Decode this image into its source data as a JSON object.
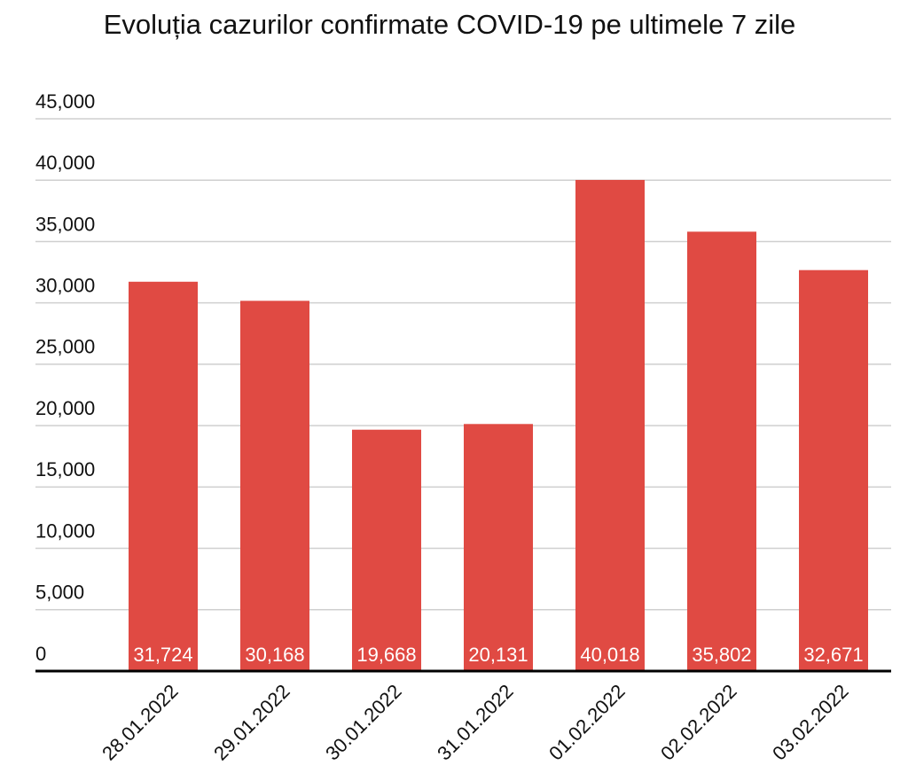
{
  "chart_data": {
    "type": "bar",
    "title": "Evoluția cazurilor confirmate COVID-19 pe ultimele 7 zile",
    "categories": [
      "28.01.2022",
      "29.01.2022",
      "30.01.2022",
      "31.01.2022",
      "01.02.2022",
      "02.02.2022",
      "03.02.2022"
    ],
    "values": [
      31724,
      30168,
      19668,
      20131,
      40018,
      35802,
      32671
    ],
    "value_labels": [
      "31,724",
      "30,168",
      "19,668",
      "20,131",
      "40,018",
      "35,802",
      "32,671"
    ],
    "color": "#e04a43",
    "ylim": [
      0,
      45000
    ],
    "yticks": [
      0,
      {
        "value": 5000,
        "label": "5,000"
      },
      {
        "value": 10000,
        "label": "10,000"
      },
      {
        "value": 15000,
        "label": "15,000"
      },
      {
        "value": 20000,
        "label": "20,000"
      },
      {
        "value": 25000,
        "label": "25,000"
      },
      {
        "value": 30000,
        "label": "30,000"
      },
      {
        "value": 35000,
        "label": "35,000"
      },
      {
        "value": 40000,
        "label": "40,000"
      },
      {
        "value": 45000,
        "label": "45,000"
      }
    ],
    "grid": true
  }
}
